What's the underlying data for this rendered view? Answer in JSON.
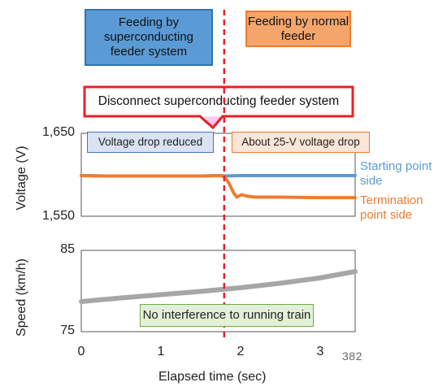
{
  "header": {
    "left_box": "Feeding by superconducting feeder system",
    "right_box": "Feeding by normal feeder",
    "callout": "Disconnect superconducting feeder system"
  },
  "annotations": {
    "voltage_left": "Voltage drop reduced",
    "voltage_right": "About 25-V voltage drop",
    "speed": "No interference to running train"
  },
  "page_number": "382",
  "colors": {
    "starting_point": "#5b9bd5",
    "termination_point": "#ed7d31",
    "speed": "#a6a6a6",
    "disconnect_line": "#e8202a"
  },
  "chart_data": [
    {
      "type": "line",
      "xlabel": "",
      "ylabel": "Voltage (V)",
      "xlim": [
        0,
        3.45
      ],
      "ylim": [
        1550,
        1650
      ],
      "y_ticks": [
        {
          "value": 1650,
          "label": "1,650"
        },
        {
          "value": 1550,
          "label": "1,550"
        }
      ],
      "vertical_marker_x": 1.8,
      "series": [
        {
          "name": "Starting point side",
          "x": [
            0,
            0.3,
            0.6,
            0.9,
            1.2,
            1.5,
            1.75,
            1.8,
            2.0,
            2.5,
            3.0,
            3.45
          ],
          "y": [
            1599,
            1598.5,
            1598.5,
            1598.5,
            1598.5,
            1598.5,
            1599,
            1598.5,
            1599,
            1599,
            1599,
            1599
          ]
        },
        {
          "name": "Termination point side",
          "x": [
            0,
            0.3,
            0.6,
            0.9,
            1.2,
            1.5,
            1.75,
            1.8,
            1.86,
            1.92,
            1.96,
            2.02,
            2.1,
            2.2,
            2.5,
            3.0,
            3.45
          ],
          "y": [
            1599,
            1598.5,
            1598.5,
            1598.5,
            1598.5,
            1598.5,
            1599,
            1598,
            1590,
            1578,
            1573,
            1576,
            1574,
            1573,
            1573,
            1572.5,
            1572.5
          ]
        }
      ]
    },
    {
      "type": "line",
      "xlabel": "Elapsed time (sec)",
      "ylabel": "Speed (km/h)",
      "xlim": [
        0,
        3.45
      ],
      "ylim": [
        75,
        85
      ],
      "y_ticks": [
        {
          "value": 85,
          "label": "85"
        },
        {
          "value": 75,
          "label": "75"
        }
      ],
      "x_ticks": [
        {
          "value": 0,
          "label": "0"
        },
        {
          "value": 1,
          "label": "1"
        },
        {
          "value": 2,
          "label": "2"
        },
        {
          "value": 3,
          "label": "3"
        }
      ],
      "vertical_marker_x": 1.8,
      "series": [
        {
          "name": "",
          "x": [
            0,
            0.5,
            1.0,
            1.5,
            2.0,
            2.5,
            3.0,
            3.45
          ],
          "y": [
            78.7,
            79.15,
            79.55,
            79.95,
            80.4,
            80.95,
            81.6,
            82.4
          ]
        }
      ]
    }
  ]
}
